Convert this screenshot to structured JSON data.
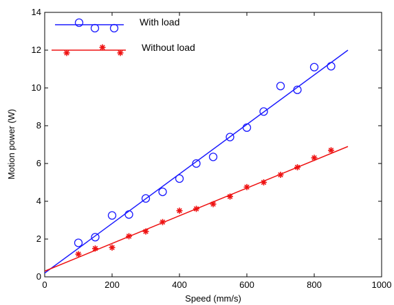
{
  "chart_data": {
    "type": "scatter",
    "xlabel": "Speed (mm/s)",
    "ylabel": "Motion power (W)",
    "xlim": [
      0,
      1000
    ],
    "ylim": [
      0,
      14
    ],
    "xticks": [
      0,
      200,
      400,
      600,
      800,
      1000
    ],
    "yticks": [
      0,
      2,
      4,
      6,
      8,
      10,
      12,
      14
    ],
    "grid": false,
    "legend_position": "top-left",
    "series": [
      {
        "name": "With load",
        "color": "#1a1aff",
        "marker": "circle",
        "points": [
          [
            100,
            1.8
          ],
          [
            150,
            2.1
          ],
          [
            200,
            3.25
          ],
          [
            250,
            3.3
          ],
          [
            300,
            4.15
          ],
          [
            350,
            4.5
          ],
          [
            400,
            5.2
          ],
          [
            450,
            6.0
          ],
          [
            500,
            6.35
          ],
          [
            550,
            7.4
          ],
          [
            600,
            7.9
          ],
          [
            650,
            8.75
          ],
          [
            700,
            10.1
          ],
          [
            750,
            9.9
          ],
          [
            800,
            11.1
          ],
          [
            850,
            11.15
          ]
        ],
        "fit_line": [
          [
            0,
            0.2
          ],
          [
            900,
            12.0
          ]
        ]
      },
      {
        "name": "Without load",
        "color": "#ee1111",
        "marker": "asterisk",
        "points": [
          [
            100,
            1.2
          ],
          [
            150,
            1.5
          ],
          [
            200,
            1.55
          ],
          [
            250,
            2.15
          ],
          [
            300,
            2.4
          ],
          [
            350,
            2.9
          ],
          [
            400,
            3.5
          ],
          [
            450,
            3.6
          ],
          [
            500,
            3.85
          ],
          [
            550,
            4.25
          ],
          [
            600,
            4.75
          ],
          [
            650,
            5.0
          ],
          [
            700,
            5.4
          ],
          [
            750,
            5.8
          ],
          [
            800,
            6.3
          ],
          [
            850,
            6.7
          ]
        ],
        "fit_line": [
          [
            0,
            0.3
          ],
          [
            900,
            6.9
          ]
        ]
      }
    ]
  }
}
